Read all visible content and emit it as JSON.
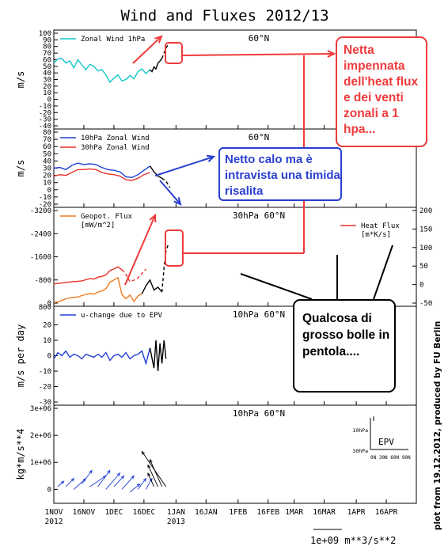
{
  "figure": {
    "title": "Wind and Fluxes 2012/13",
    "credit": "plot from 19.12.2012, produced by FU Berlin",
    "arrow_scale_label": "1e+09 m**3/s**2"
  },
  "x_axis": {
    "ticks": [
      {
        "day": 0,
        "label": "1NOV",
        "year": "2012"
      },
      {
        "day": 15,
        "label": "16NOV",
        "year": ""
      },
      {
        "day": 30,
        "label": "1DEC",
        "year": ""
      },
      {
        "day": 45,
        "label": "16DEC",
        "year": ""
      },
      {
        "day": 61,
        "label": "1JAN",
        "year": "2013"
      },
      {
        "day": 76,
        "label": "16JAN",
        "year": ""
      },
      {
        "day": 92,
        "label": "1FEB",
        "year": ""
      },
      {
        "day": 107,
        "label": "16FEB",
        "year": ""
      },
      {
        "day": 120,
        "label": "1MAR",
        "year": ""
      },
      {
        "day": 135,
        "label": "16MAR",
        "year": ""
      },
      {
        "day": 151,
        "label": "1APR",
        "year": ""
      },
      {
        "day": 166,
        "label": "16APR",
        "year": ""
      }
    ],
    "range_days": [
      0,
      181
    ]
  },
  "chart_data": [
    {
      "type": "line",
      "panel": "zonal-wind-1hpa",
      "title": "60°N",
      "ylabel": "m/s",
      "ylim": [
        -40,
        100
      ],
      "yticks": [
        -40,
        -30,
        -20,
        -10,
        0,
        10,
        20,
        30,
        40,
        50,
        60,
        70,
        80,
        90,
        100
      ],
      "legend": [
        {
          "label": "Zonal Wind 1hPa",
          "color": "#13c6c9"
        }
      ],
      "series": [
        {
          "name": "Zonal Wind 1hPa",
          "color": "#13c6c9",
          "style": "solid",
          "x": [
            0,
            2,
            4,
            6,
            8,
            10,
            12,
            14,
            16,
            18,
            20,
            22,
            24,
            26,
            28,
            30,
            32,
            34,
            36,
            38,
            40,
            42,
            44,
            46,
            48
          ],
          "y": [
            55,
            61,
            62,
            55,
            58,
            48,
            60,
            52,
            45,
            53,
            50,
            43,
            45,
            37,
            26,
            32,
            37,
            28,
            30,
            36,
            31,
            42,
            46,
            39,
            45
          ]
        },
        {
          "name": "",
          "color": "#000000",
          "style": "solid",
          "x": [
            48,
            49,
            50,
            51,
            52,
            53,
            54
          ],
          "y": [
            45,
            42,
            49,
            46,
            55,
            58,
            62
          ]
        },
        {
          "name": "",
          "color": "#000000",
          "style": "dashed",
          "x": [
            54,
            55,
            56,
            57
          ],
          "y": [
            62,
            70,
            77,
            83
          ]
        }
      ]
    },
    {
      "type": "line",
      "panel": "zonal-wind-10-30hpa",
      "title": "60°N",
      "ylabel": "m/s",
      "ylim": [
        -20,
        80
      ],
      "yticks": [
        -20,
        -10,
        0,
        10,
        20,
        30,
        40,
        50,
        60,
        70,
        80
      ],
      "legend": [
        {
          "label": "10hPa Zonal Wind",
          "color": "#1f3fd6"
        },
        {
          "label": "30hPa Zonal Wind",
          "color": "#e83228"
        }
      ],
      "series": [
        {
          "name": "10hPa Zonal Wind",
          "color": "#1f3fd6",
          "style": "solid",
          "x": [
            0,
            3,
            6,
            9,
            12,
            15,
            18,
            21,
            24,
            27,
            30,
            33,
            36,
            39,
            42,
            45,
            48
          ],
          "y": [
            30,
            31,
            28,
            34,
            37,
            35,
            36,
            35,
            31,
            28,
            27,
            25,
            18,
            17,
            21,
            27,
            33
          ]
        },
        {
          "name": "30hPa Zonal Wind",
          "color": "#e83228",
          "style": "solid",
          "x": [
            0,
            3,
            6,
            9,
            12,
            15,
            18,
            21,
            24,
            27,
            30,
            33,
            36,
            39,
            42,
            45,
            48
          ],
          "y": [
            19,
            21,
            20,
            24,
            28,
            28,
            29,
            28,
            24,
            22,
            21,
            19,
            14,
            13,
            16,
            21,
            24
          ]
        },
        {
          "name": "",
          "color": "#000000",
          "style": "solid",
          "x": [
            48,
            50,
            52,
            54
          ],
          "y": [
            33,
            25,
            19,
            16
          ]
        },
        {
          "name": "",
          "color": "#000000",
          "style": "dashed",
          "x": [
            54,
            56,
            58
          ],
          "y": [
            16,
            12,
            3
          ]
        }
      ]
    },
    {
      "type": "line",
      "panel": "fluxes",
      "title": "30hPa 60°N",
      "ylabel": "",
      "ylim": [
        0,
        -3200
      ],
      "yticks": [
        0,
        -800,
        -1600,
        -2400,
        -3200
      ],
      "y2lim": [
        -50,
        200
      ],
      "y2ticks": [
        -50,
        0,
        50,
        100,
        150,
        200
      ],
      "legend": [
        {
          "label": "Geopot. Flux",
          "unit": "[mW/m^2]",
          "color": "#f07a1e"
        },
        {
          "label": "Heat Flux",
          "unit": "[m*K/s]",
          "color": "#e83228"
        }
      ],
      "series": [
        {
          "name": "Geopot. Flux",
          "color": "#f07a1e",
          "style": "solid",
          "axis": "left",
          "x": [
            0,
            2,
            4,
            6,
            8,
            10,
            12,
            14,
            16,
            18,
            20,
            22,
            24,
            26,
            28,
            30,
            32,
            34,
            36,
            38,
            40,
            42,
            44
          ],
          "y": [
            -20,
            -40,
            -90,
            -150,
            -180,
            -200,
            -210,
            -260,
            -300,
            -330,
            -310,
            -380,
            -420,
            -500,
            -720,
            -800,
            -880,
            -300,
            -150,
            -280,
            -60,
            -250,
            -320
          ]
        },
        {
          "name": "Heat Flux",
          "color": "#e83228",
          "style": "solid",
          "axis": "right",
          "x": [
            0,
            2,
            4,
            6,
            8,
            10,
            12,
            14,
            16,
            18,
            20,
            22,
            24,
            26,
            28,
            30,
            32,
            34
          ],
          "y": [
            2,
            3,
            4,
            6,
            7,
            8,
            9,
            10,
            13,
            16,
            15,
            20,
            22,
            26,
            38,
            42,
            48,
            40
          ]
        },
        {
          "name": "",
          "color": "#e83228",
          "style": "dashed",
          "axis": "right",
          "x": [
            34,
            36,
            38,
            40,
            42,
            44,
            46
          ],
          "y": [
            40,
            28,
            8,
            12,
            18,
            30,
            42
          ]
        },
        {
          "name": "",
          "color": "#000000",
          "style": "solid",
          "axis": "left",
          "x": [
            44,
            46,
            48,
            50,
            52,
            54
          ],
          "y": [
            -320,
            -600,
            -800,
            -450,
            -550,
            -380
          ]
        },
        {
          "name": "",
          "color": "#000000",
          "style": "dashed",
          "axis": "left",
          "x": [
            54,
            55,
            56,
            57
          ],
          "y": [
            -380,
            -1200,
            -1800,
            -2000
          ]
        }
      ]
    },
    {
      "type": "line",
      "panel": "u-change",
      "title": "10hPa 60°N",
      "ylabel": "m/s per day",
      "ylim": [
        -30,
        30
      ],
      "yticks": [
        -30,
        -20,
        -10,
        0,
        10,
        20
      ],
      "y_top_label": "800",
      "legend": [
        {
          "label": "u-change due to EPV",
          "color": "#1f3fd6"
        }
      ],
      "series": [
        {
          "name": "u-change due to EPV",
          "color": "#1f3fd6",
          "style": "solid",
          "x": [
            0,
            2,
            4,
            6,
            8,
            10,
            12,
            14,
            16,
            18,
            20,
            22,
            24,
            26,
            28,
            30,
            32,
            34,
            36,
            38,
            40,
            42,
            44,
            46,
            48
          ],
          "y": [
            -2,
            2,
            0,
            3,
            -1,
            1,
            0,
            -2,
            1,
            0,
            -1,
            1,
            -1,
            2,
            -3,
            0,
            1,
            -1,
            2,
            -2,
            0,
            1,
            3,
            -5,
            5
          ]
        },
        {
          "name": "",
          "color": "#000000",
          "style": "solid",
          "x": [
            48,
            50,
            51,
            52,
            53,
            54,
            55,
            56
          ],
          "y": [
            5,
            -8,
            10,
            -10,
            8,
            -5,
            10,
            -2
          ]
        }
      ]
    },
    {
      "type": "scatter",
      "panel": "epv-vectors",
      "title": "10hPa 60°N",
      "ylabel": "kg*m/s**4",
      "ylim": [
        -0.4,
        3
      ],
      "yticks_label": [
        "0",
        "1e+06",
        "2e+06",
        "3e+06"
      ],
      "ytick_values": [
        0,
        1,
        2,
        3
      ],
      "inset": {
        "ylabels": [
          "10hPa",
          "30hPa"
        ],
        "xlabel": "0N 30N 60N 90N",
        "title": "EPV"
      },
      "arrows": [
        {
          "x": 2,
          "y": 0.1,
          "dx": 3,
          "dy": 0.2,
          "color": "#1f3fd6"
        },
        {
          "x": 6,
          "y": 0.1,
          "dx": 4,
          "dy": 0.3,
          "color": "#1f3fd6"
        },
        {
          "x": 10,
          "y": 0.0,
          "dx": 6,
          "dy": 0.4,
          "color": "#1f3fd6"
        },
        {
          "x": 14,
          "y": 0.2,
          "dx": 5,
          "dy": 0.5,
          "color": "#1f3fd6"
        },
        {
          "x": 18,
          "y": 0.1,
          "dx": 8,
          "dy": 0.4,
          "color": "#1f3fd6"
        },
        {
          "x": 22,
          "y": 0.1,
          "dx": 6,
          "dy": 0.6,
          "color": "#1f3fd6"
        },
        {
          "x": 26,
          "y": 0.0,
          "dx": 7,
          "dy": 0.6,
          "color": "#1f3fd6"
        },
        {
          "x": 30,
          "y": 0.1,
          "dx": 5,
          "dy": 0.4,
          "color": "#1f3fd6"
        },
        {
          "x": 34,
          "y": 0.0,
          "dx": 6,
          "dy": 0.5,
          "color": "#1f3fd6"
        },
        {
          "x": 38,
          "y": -0.1,
          "dx": 5,
          "dy": 0.3,
          "color": "#1f3fd6"
        },
        {
          "x": 42,
          "y": 0.0,
          "dx": 4,
          "dy": 0.4,
          "color": "#1f3fd6"
        },
        {
          "x": 46,
          "y": 0.0,
          "dx": 3,
          "dy": 0.4,
          "color": "#1f3fd6"
        },
        {
          "x": 50,
          "y": 0.1,
          "dx": -3,
          "dy": 0.5,
          "color": "#000000"
        },
        {
          "x": 52,
          "y": 0.1,
          "dx": -5,
          "dy": 0.8,
          "color": "#000000"
        },
        {
          "x": 54,
          "y": 0.1,
          "dx": -6,
          "dy": 1.0,
          "color": "#000000"
        },
        {
          "x": 56,
          "y": 0.1,
          "dx": -12,
          "dy": 1.3,
          "color": "#000000"
        }
      ]
    }
  ],
  "annotations": {
    "callout_red": "Netta impennata dell'heat flux e dei venti zonali a 1 hpa...",
    "callout_blue": "Netto calo ma è intravista una timida risalita",
    "callout_black": "Qualcosa di grosso bolle in pentola....",
    "red_color": "#ef3b3b",
    "blue_color": "#2a3fd0"
  }
}
